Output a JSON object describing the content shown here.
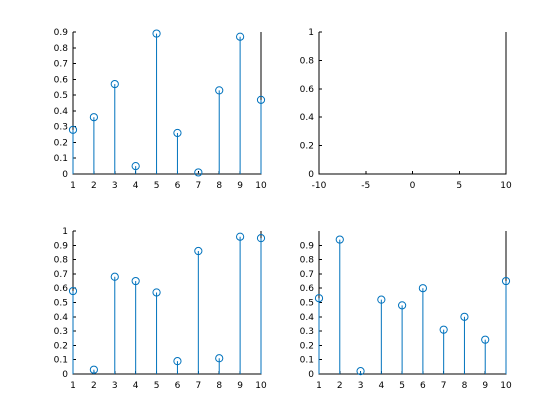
{
  "style": {
    "series_color": "#0072BD"
  },
  "chart_data": [
    {
      "type": "stem",
      "title": "",
      "xlabel": "",
      "ylabel": "",
      "xlim": [
        1,
        10
      ],
      "ylim": [
        0,
        0.9
      ],
      "xticks": [
        "1",
        "2",
        "3",
        "4",
        "5",
        "6",
        "7",
        "8",
        "9",
        "10"
      ],
      "yticks": [
        "0",
        "0.1",
        "0.2",
        "0.3",
        "0.4",
        "0.5",
        "0.6",
        "0.7",
        "0.8",
        "0.9"
      ],
      "series": [
        {
          "x": [
            1,
            2,
            3,
            4,
            5,
            6,
            7,
            8,
            9,
            10
          ],
          "values": [
            0.28,
            0.36,
            0.57,
            0.05,
            0.89,
            0.26,
            0.01,
            0.53,
            0.87,
            0.47
          ]
        }
      ]
    },
    {
      "type": "stem",
      "title": "",
      "xlabel": "",
      "ylabel": "",
      "xlim": [
        -10,
        10
      ],
      "ylim": [
        0,
        1
      ],
      "xticks": [
        "-10",
        "-5",
        "0",
        "5",
        "10"
      ],
      "yticks": [
        "0",
        "0.2",
        "0.4",
        "0.6",
        "0.8",
        "1"
      ],
      "series": []
    },
    {
      "type": "stem",
      "title": "",
      "xlabel": "",
      "ylabel": "",
      "xlim": [
        1,
        10
      ],
      "ylim": [
        0,
        1
      ],
      "xticks": [
        "1",
        "2",
        "3",
        "4",
        "5",
        "6",
        "7",
        "8",
        "9",
        "10"
      ],
      "yticks": [
        "0",
        "0.1",
        "0.2",
        "0.3",
        "0.4",
        "0.5",
        "0.6",
        "0.7",
        "0.8",
        "0.9",
        "1"
      ],
      "series": [
        {
          "x": [
            1,
            2,
            3,
            4,
            5,
            6,
            7,
            8,
            9,
            10
          ],
          "values": [
            0.58,
            0.03,
            0.68,
            0.65,
            0.57,
            0.09,
            0.86,
            0.11,
            0.96,
            0.95
          ]
        }
      ]
    },
    {
      "type": "stem",
      "title": "",
      "xlabel": "",
      "ylabel": "",
      "xlim": [
        1,
        10
      ],
      "ylim": [
        0,
        1
      ],
      "xticks": [
        "1",
        "2",
        "3",
        "4",
        "5",
        "6",
        "7",
        "8",
        "9",
        "10"
      ],
      "yticks": [
        "0",
        "0.1",
        "0.2",
        "0.3",
        "0.4",
        "0.5",
        "0.6",
        "0.7",
        "0.8",
        "0.9"
      ],
      "series": [
        {
          "x": [
            1,
            2,
            3,
            4,
            5,
            6,
            7,
            8,
            9,
            10
          ],
          "values": [
            0.53,
            0.94,
            0.02,
            0.52,
            0.48,
            0.6,
            0.31,
            0.4,
            0.24,
            0.65
          ]
        }
      ]
    }
  ]
}
